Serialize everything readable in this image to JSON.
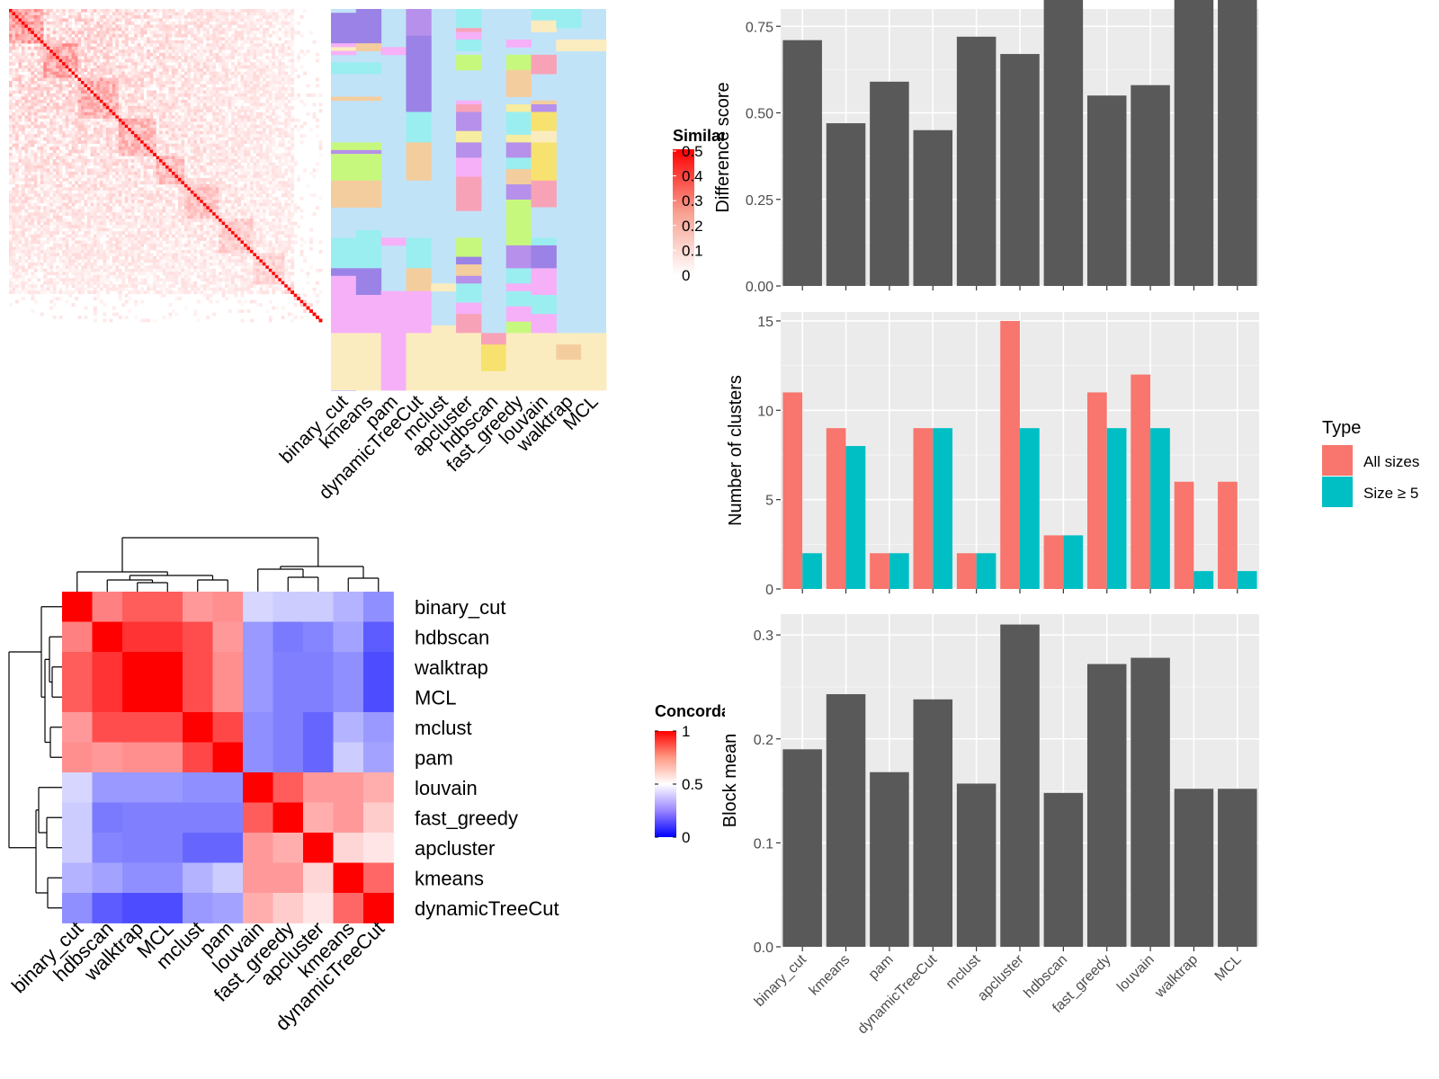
{
  "methods_top": [
    "binary_cut",
    "kmeans",
    "pam",
    "dynamicTreeCut",
    "mclust",
    "apcluster",
    "hdbscan",
    "fast_greedy",
    "louvain",
    "walktrap",
    "MCL"
  ],
  "methods_concordance": [
    "binary_cut",
    "hdbscan",
    "walktrap",
    "MCL",
    "mclust",
    "pam",
    "louvain",
    "fast_greedy",
    "apcluster",
    "kmeans",
    "dynamicTreeCut"
  ],
  "similarity_legend": {
    "title": "Similarity",
    "ticks": [
      "0",
      "0.1",
      "0.2",
      "0.3",
      "0.4",
      "0.5"
    ]
  },
  "concordance_legend": {
    "title": "Concordance",
    "ticks": [
      "0",
      "0.5",
      "1"
    ]
  },
  "type_legend": {
    "title": "Type",
    "items": [
      {
        "label": "All sizes",
        "color": "#F8766D"
      },
      {
        "label": "Size ≥ 5",
        "color": "#00BFC4"
      }
    ]
  },
  "concordance_matrix": [
    [
      1.0,
      0.75,
      0.82,
      0.82,
      0.7,
      0.72,
      0.42,
      0.4,
      0.4,
      0.35,
      0.28
    ],
    [
      0.75,
      1.0,
      0.9,
      0.9,
      0.85,
      0.7,
      0.3,
      0.24,
      0.26,
      0.32,
      0.18
    ],
    [
      0.82,
      0.9,
      1.0,
      1.0,
      0.85,
      0.72,
      0.3,
      0.25,
      0.25,
      0.28,
      0.15
    ],
    [
      0.82,
      0.9,
      1.0,
      1.0,
      0.85,
      0.72,
      0.3,
      0.25,
      0.25,
      0.28,
      0.15
    ],
    [
      0.7,
      0.85,
      0.85,
      0.85,
      1.0,
      0.86,
      0.28,
      0.25,
      0.2,
      0.35,
      0.3
    ],
    [
      0.72,
      0.7,
      0.72,
      0.72,
      0.86,
      1.0,
      0.28,
      0.25,
      0.2,
      0.4,
      0.32
    ],
    [
      0.42,
      0.3,
      0.3,
      0.3,
      0.28,
      0.28,
      1.0,
      0.82,
      0.7,
      0.7,
      0.66
    ],
    [
      0.4,
      0.24,
      0.25,
      0.25,
      0.25,
      0.25,
      0.82,
      1.0,
      0.66,
      0.7,
      0.6
    ],
    [
      0.4,
      0.26,
      0.25,
      0.25,
      0.2,
      0.2,
      0.7,
      0.66,
      1.0,
      0.58,
      0.55
    ],
    [
      0.35,
      0.32,
      0.28,
      0.28,
      0.35,
      0.4,
      0.7,
      0.7,
      0.58,
      1.0,
      0.8
    ],
    [
      0.28,
      0.18,
      0.15,
      0.15,
      0.3,
      0.32,
      0.66,
      0.6,
      0.55,
      0.8,
      1.0
    ]
  ],
  "palette": [
    "#c1e3f8",
    "#9b82e6",
    "#f6b0f8",
    "#b690ea",
    "#9beef0",
    "#f4cd9e",
    "#c7f87e",
    "#f6eda0",
    "#f8a2b8",
    "#f7e26f",
    "#fbecc0"
  ],
  "chart_data": [
    {
      "type": "heatmap",
      "title": "",
      "legend_title": "Similarity",
      "value_range": [
        0,
        0.5
      ],
      "n_terms": 100,
      "colors": {
        "low": "#ffffff",
        "high": "#ff0000"
      }
    },
    {
      "type": "heatmap",
      "title": "",
      "legend_title": "Concordance",
      "value_range": [
        0,
        1
      ],
      "row_labels": [
        "binary_cut",
        "hdbscan",
        "walktrap",
        "MCL",
        "mclust",
        "pam",
        "louvain",
        "fast_greedy",
        "apcluster",
        "kmeans",
        "dynamicTreeCut"
      ],
      "col_labels": [
        "binary_cut",
        "hdbscan",
        "walktrap",
        "MCL",
        "mclust",
        "pam",
        "louvain",
        "fast_greedy",
        "apcluster",
        "kmeans",
        "dynamicTreeCut"
      ],
      "colors": {
        "low": "#0000ff",
        "mid": "#ffffff",
        "high": "#ff0000"
      }
    },
    {
      "type": "bar",
      "categories": [
        "binary_cut",
        "kmeans",
        "pam",
        "dynamicTreeCut",
        "mclust",
        "apcluster",
        "hdbscan",
        "fast_greedy",
        "louvain",
        "walktrap",
        "MCL"
      ],
      "values": [
        0.71,
        0.47,
        0.59,
        0.45,
        0.72,
        0.67,
        0.85,
        0.55,
        0.58,
        0.875,
        0.875
      ],
      "xlabel": "",
      "ylabel": "Difference score",
      "ylim": [
        0,
        0.8
      ],
      "yticks": [
        "0.00",
        "0.25",
        "0.50",
        "0.75"
      ],
      "bar_color": "#595959"
    },
    {
      "type": "bar",
      "categories": [
        "binary_cut",
        "kmeans",
        "pam",
        "dynamicTreeCut",
        "mclust",
        "apcluster",
        "hdbscan",
        "fast_greedy",
        "louvain",
        "walktrap",
        "MCL"
      ],
      "series": [
        {
          "name": "All sizes",
          "values": [
            11,
            9,
            2,
            9,
            2,
            15,
            3,
            11,
            12,
            6,
            6
          ],
          "color": "#F8766D"
        },
        {
          "name": "Size ≥ 5",
          "values": [
            2,
            8,
            2,
            9,
            2,
            9,
            3,
            9,
            9,
            1,
            1
          ],
          "color": "#00BFC4"
        }
      ],
      "xlabel": "",
      "ylabel": "Number of clusters",
      "ylim": [
        0,
        15.5
      ],
      "yticks": [
        "0",
        "5",
        "10",
        "15"
      ]
    },
    {
      "type": "bar",
      "categories": [
        "binary_cut",
        "kmeans",
        "pam",
        "dynamicTreeCut",
        "mclust",
        "apcluster",
        "hdbscan",
        "fast_greedy",
        "louvain",
        "walktrap",
        "MCL"
      ],
      "values": [
        0.19,
        0.243,
        0.168,
        0.238,
        0.157,
        0.31,
        0.148,
        0.272,
        0.278,
        0.152,
        0.152
      ],
      "xlabel": "",
      "ylabel": "Block mean",
      "ylim": [
        0,
        0.32
      ],
      "yticks": [
        "0.0",
        "0.1",
        "0.2",
        "0.3"
      ],
      "bar_color": "#595959"
    }
  ]
}
